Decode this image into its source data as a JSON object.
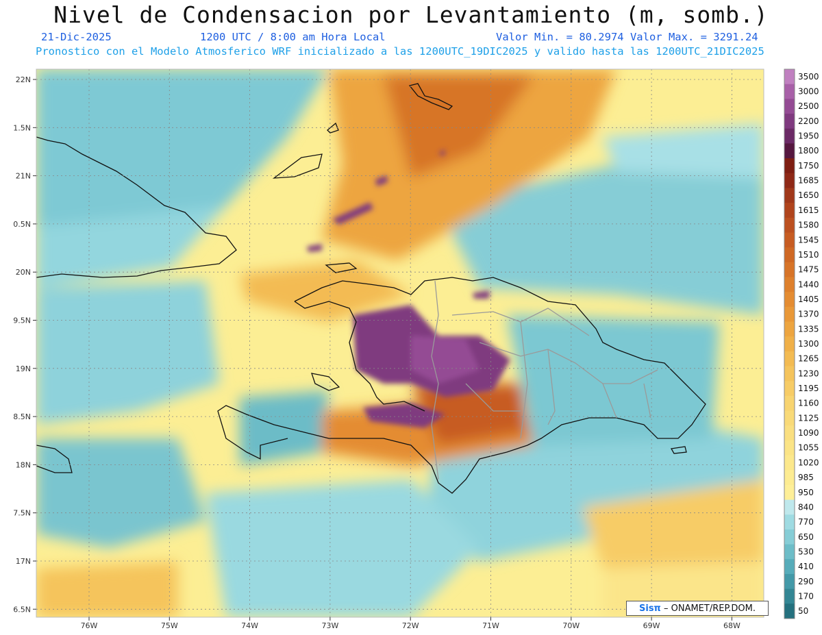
{
  "header": {
    "title": "Nivel de Condensacion por Levantamiento (m, somb.)",
    "date": "21-Dic-2025",
    "time": "1200 UTC / 8:00 am Hora Local",
    "minmax": "Valor Min. = 80.2974  Valor Max. = 3291.24",
    "forecast": "Pronostico con el Modelo Atmosferico WRF inicializado a las 1200UTC_19DIC2025 y valido hasta las  1200UTC_21DIC2025"
  },
  "map": {
    "lon_labels": [
      "76W",
      "75W",
      "74W",
      "73W",
      "72W",
      "71W",
      "70W",
      "69W",
      "68W"
    ],
    "lat_labels": [
      "22N",
      "1.5N",
      "21N",
      "0.5N",
      "20N",
      "9.5N",
      "19N",
      "8.5N",
      "18N",
      "7.5N",
      "17N",
      "6.5N"
    ]
  },
  "colorbar": {
    "levels": [
      "3500",
      "3000",
      "2500",
      "2200",
      "1950",
      "1800",
      "1750",
      "1685",
      "1650",
      "1615",
      "1580",
      "1545",
      "1510",
      "1475",
      "1440",
      "1405",
      "1370",
      "1335",
      "1300",
      "1265",
      "1230",
      "1195",
      "1160",
      "1125",
      "1090",
      "1055",
      "1020",
      "985",
      "950",
      "840",
      "770",
      "650",
      "530",
      "410",
      "290",
      "170",
      "50"
    ],
    "colors": [
      "#c080c0",
      "#a860a8",
      "#944b94",
      "#7f3a7f",
      "#6b2a66",
      "#55173f",
      "#7e1e12",
      "#8e2816",
      "#a0381a",
      "#b0441c",
      "#bc5020",
      "#c75c22",
      "#cf6824",
      "#d77428",
      "#de802c",
      "#e48c32",
      "#e99838",
      "#eda540",
      "#f0b048",
      "#f3bb52",
      "#f5c45c",
      "#f7cc66",
      "#f8d470",
      "#f9da78",
      "#fadf80",
      "#fbe486",
      "#fce88c",
      "#fdec92",
      "#feef98",
      "#bfe8ec",
      "#9fdbe2",
      "#86cdd6",
      "#6dbdc8",
      "#56acba",
      "#4399a8",
      "#338694",
      "#24707e"
    ]
  },
  "credit": {
    "logo": "Sisπ",
    "text": " – ONAMET/REP.DOM."
  }
}
